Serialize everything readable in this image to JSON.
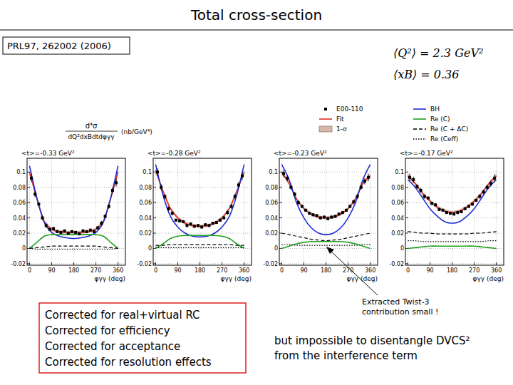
{
  "slide": {
    "title": "Total cross-section",
    "reference": "PRL97, 262002 (2006)",
    "kinematics": [
      "⟨Q²⟩ = 2.3 GeV²",
      "⟨xB⟩ = 0.36"
    ],
    "corrections": [
      "Corrected for real+virtual RC",
      "Corrected for efficiency",
      "Corrected for acceptance",
      "Corrected for resolution effects"
    ],
    "annotations": [
      "Extracted Twist-3",
      "contribution small !"
    ],
    "conclusion": [
      "but impossible to disentangle DVCS²",
      "from the interference term"
    ]
  },
  "chart_data": [
    {
      "type": "scatter",
      "title": "<t>=-0.33 GeV²",
      "x_label": "φγγ (deg)",
      "y_label": {
        "numerator": "d⁴σ",
        "denominator": "dQ²dxBdtdφγγ",
        "unit": "(nb/GeV⁴)"
      },
      "legend": "top-right",
      "grid": true,
      "xlim": [
        -10,
        390
      ],
      "xticks": [
        0,
        90,
        180,
        270,
        360
      ],
      "ylim": [
        -0.022,
        0.118
      ],
      "yticks": [
        -0.02,
        0,
        0.02,
        0.04,
        0.06,
        0.08,
        0.1
      ],
      "x": [
        0,
        30,
        60,
        90,
        120,
        150,
        180,
        210,
        240,
        270,
        300,
        330,
        360
      ],
      "series": [
        {
          "name": "E00-110",
          "type": "scatter",
          "marker": "square",
          "color": "#000000",
          "x": [
            7.5,
            22.5,
            37.5,
            52.5,
            67.5,
            82.5,
            97.5,
            112.5,
            127.5,
            142.5,
            157.5,
            172.5,
            187.5,
            202.5,
            217.5,
            232.5,
            247.5,
            262.5,
            277.5,
            292.5,
            307.5,
            322.5,
            337.5,
            352.5
          ],
          "values": [
            0.092,
            0.071,
            0.058,
            0.04,
            0.03,
            0.025,
            0.026,
            0.022,
            0.021,
            0.023,
            0.02,
            0.022,
            0.021,
            0.019,
            0.023,
            0.022,
            0.024,
            0.022,
            0.027,
            0.033,
            0.042,
            0.055,
            0.076,
            0.086
          ],
          "errors": [
            0.005,
            0.004,
            0.003,
            0.003,
            0.003,
            0.002,
            0.002,
            0.002,
            0.002,
            0.002,
            0.002,
            0.002,
            0.002,
            0.002,
            0.002,
            0.002,
            0.002,
            0.002,
            0.002,
            0.003,
            0.003,
            0.003,
            0.004,
            0.005
          ]
        },
        {
          "name": "Fit",
          "type": "line",
          "line_style": "solid",
          "color": "#e0302a",
          "values": [
            0.1,
            0.065,
            0.035,
            0.025,
            0.022,
            0.021,
            0.021,
            0.021,
            0.022,
            0.025,
            0.035,
            0.065,
            0.1
          ]
        },
        {
          "name": "1-σ",
          "type": "area",
          "color": "#c49a8a",
          "high": [
            0.103,
            0.067,
            0.037,
            0.027,
            0.024,
            0.023,
            0.023,
            0.023,
            0.024,
            0.027,
            0.037,
            0.067,
            0.103
          ],
          "low": [
            0.097,
            0.063,
            0.033,
            0.023,
            0.02,
            0.019,
            0.019,
            0.019,
            0.02,
            0.023,
            0.033,
            0.063,
            0.097
          ]
        },
        {
          "name": "BH",
          "type": "line",
          "line_style": "solid",
          "color": "#1f2fd0",
          "values": [
            0.108,
            0.066,
            0.034,
            0.021,
            0.016,
            0.014,
            0.013,
            0.014,
            0.016,
            0.021,
            0.034,
            0.066,
            0.108
          ]
        },
        {
          "name": "Re (C)",
          "type": "line",
          "line_style": "solid",
          "color": "#1fa01f",
          "values": [
            0,
            0.008,
            0.016,
            0.018,
            0.018,
            0.018,
            0.018,
            0.018,
            0.018,
            0.018,
            0.016,
            0.008,
            0
          ]
        },
        {
          "name": "Re (C + ΔC)",
          "type": "line",
          "line_style": "dashed",
          "color": "#000000",
          "values": [
            0,
            0.001,
            0.002,
            0.003,
            0.003,
            0.003,
            0.003,
            0.003,
            0.003,
            0.003,
            0.002,
            0.001,
            0
          ]
        },
        {
          "name": "Re (Ceff)",
          "type": "line",
          "line_style": "dotted",
          "color": "#000000",
          "values": [
            0,
            -0.001,
            -0.001,
            -0.001,
            -0.001,
            -0.001,
            -0.001,
            -0.001,
            -0.001,
            -0.001,
            -0.001,
            -0.001,
            0
          ]
        }
      ]
    },
    {
      "type": "scatter",
      "title": "<t>=-0.28 GeV²",
      "x_label": "φγγ (deg)",
      "grid": true,
      "xlim": [
        -10,
        390
      ],
      "xticks": [
        0,
        90,
        180,
        270,
        360
      ],
      "ylim": [
        -0.022,
        0.118
      ],
      "yticks": [
        -0.02,
        0,
        0.02,
        0.04,
        0.06,
        0.08,
        0.1
      ],
      "x": [
        0,
        30,
        60,
        90,
        120,
        150,
        180,
        210,
        240,
        270,
        300,
        330,
        360
      ],
      "series": [
        {
          "type": "scatter",
          "marker": "square",
          "color": "#000000",
          "x": [
            7.5,
            22.5,
            37.5,
            52.5,
            67.5,
            82.5,
            97.5,
            112.5,
            127.5,
            142.5,
            157.5,
            172.5,
            187.5,
            202.5,
            217.5,
            232.5,
            247.5,
            262.5,
            277.5,
            292.5,
            307.5,
            322.5,
            337.5,
            352.5
          ],
          "values": [
            0.1,
            0.08,
            0.068,
            0.052,
            0.046,
            0.037,
            0.036,
            0.035,
            0.03,
            0.032,
            0.029,
            0.03,
            0.028,
            0.031,
            0.03,
            0.033,
            0.034,
            0.037,
            0.04,
            0.047,
            0.055,
            0.068,
            0.083,
            0.095
          ],
          "errors": [
            0.005,
            0.004,
            0.003,
            0.003,
            0.003,
            0.002,
            0.002,
            0.002,
            0.002,
            0.002,
            0.002,
            0.002,
            0.002,
            0.002,
            0.002,
            0.002,
            0.002,
            0.002,
            0.002,
            0.003,
            0.003,
            0.003,
            0.004,
            0.005
          ]
        },
        {
          "type": "line",
          "line_style": "solid",
          "color": "#e0302a",
          "values": [
            0.102,
            0.075,
            0.052,
            0.04,
            0.033,
            0.03,
            0.029,
            0.03,
            0.033,
            0.04,
            0.052,
            0.075,
            0.1
          ]
        },
        {
          "type": "area",
          "color": "#c49a8a",
          "high": [
            0.105,
            0.077,
            0.054,
            0.042,
            0.035,
            0.032,
            0.031,
            0.032,
            0.035,
            0.042,
            0.054,
            0.077,
            0.103
          ],
          "low": [
            0.099,
            0.073,
            0.05,
            0.038,
            0.031,
            0.028,
            0.027,
            0.028,
            0.031,
            0.038,
            0.05,
            0.073,
            0.097
          ]
        },
        {
          "type": "line",
          "line_style": "solid",
          "color": "#1f2fd0",
          "values": [
            0.11,
            0.07,
            0.042,
            0.028,
            0.02,
            0.016,
            0.015,
            0.016,
            0.02,
            0.028,
            0.042,
            0.07,
            0.11
          ]
        },
        {
          "type": "line",
          "line_style": "solid",
          "color": "#1fa01f",
          "values": [
            0,
            0.006,
            0.013,
            0.016,
            0.017,
            0.017,
            0.017,
            0.017,
            0.017,
            0.016,
            0.013,
            0.006,
            0
          ]
        },
        {
          "type": "line",
          "line_style": "dashed",
          "color": "#000000",
          "values": [
            0.004,
            0.004,
            0.005,
            0.005,
            0.005,
            0.005,
            0.005,
            0.005,
            0.005,
            0.005,
            0.005,
            0.004,
            0.004
          ]
        },
        {
          "type": "line",
          "line_style": "dotted",
          "color": "#000000",
          "values": [
            0.001,
            0.001,
            0.001,
            0.001,
            0.001,
            0.001,
            0.001,
            0.001,
            0.001,
            0.001,
            0.001,
            0.001,
            0.001
          ]
        }
      ]
    },
    {
      "type": "scatter",
      "title": "<t>=-0.23 GeV²",
      "x_label": "φγγ (deg)",
      "grid": true,
      "xlim": [
        -10,
        390
      ],
      "xticks": [
        0,
        90,
        180,
        270,
        360
      ],
      "ylim": [
        -0.022,
        0.118
      ],
      "yticks": [
        -0.02,
        0,
        0.02,
        0.04,
        0.06,
        0.08,
        0.1
      ],
      "x": [
        0,
        30,
        60,
        90,
        120,
        150,
        180,
        210,
        240,
        270,
        300,
        330,
        360
      ],
      "series": [
        {
          "type": "scatter",
          "marker": "square",
          "color": "#000000",
          "x": [
            7.5,
            22.5,
            37.5,
            52.5,
            67.5,
            82.5,
            97.5,
            112.5,
            127.5,
            142.5,
            157.5,
            172.5,
            187.5,
            202.5,
            217.5,
            232.5,
            247.5,
            262.5,
            277.5,
            292.5,
            307.5,
            322.5,
            337.5,
            352.5
          ],
          "values": [
            0.098,
            0.092,
            0.08,
            0.071,
            0.06,
            0.055,
            0.05,
            0.046,
            0.044,
            0.043,
            0.04,
            0.041,
            0.039,
            0.041,
            0.042,
            0.045,
            0.047,
            0.05,
            0.055,
            0.061,
            0.068,
            0.08,
            0.088,
            0.093
          ],
          "errors": [
            0.005,
            0.004,
            0.003,
            0.003,
            0.003,
            0.002,
            0.002,
            0.002,
            0.002,
            0.002,
            0.002,
            0.002,
            0.002,
            0.002,
            0.002,
            0.002,
            0.002,
            0.002,
            0.002,
            0.003,
            0.003,
            0.003,
            0.004,
            0.005
          ]
        },
        {
          "type": "line",
          "line_style": "solid",
          "color": "#e0302a",
          "values": [
            0.1,
            0.085,
            0.065,
            0.052,
            0.045,
            0.041,
            0.04,
            0.041,
            0.045,
            0.052,
            0.065,
            0.085,
            0.095
          ]
        },
        {
          "type": "area",
          "color": "#c49a8a",
          "high": [
            0.103,
            0.087,
            0.067,
            0.054,
            0.047,
            0.043,
            0.042,
            0.043,
            0.047,
            0.054,
            0.067,
            0.087,
            0.098
          ],
          "low": [
            0.097,
            0.083,
            0.063,
            0.05,
            0.043,
            0.039,
            0.038,
            0.039,
            0.043,
            0.05,
            0.063,
            0.083,
            0.092
          ]
        },
        {
          "type": "line",
          "line_style": "solid",
          "color": "#1f2fd0",
          "values": [
            0.11,
            0.09,
            0.06,
            0.04,
            0.027,
            0.02,
            0.018,
            0.02,
            0.027,
            0.04,
            0.06,
            0.09,
            0.11
          ]
        },
        {
          "type": "line",
          "line_style": "solid",
          "color": "#1fa01f",
          "values": [
            0,
            0.003,
            0.006,
            0.008,
            0.009,
            0.009,
            0.009,
            0.009,
            0.009,
            0.008,
            0.006,
            0.003,
            0
          ]
        },
        {
          "type": "line",
          "line_style": "dashed",
          "color": "#000000",
          "values": [
            0.02,
            0.018,
            0.016,
            0.014,
            0.012,
            0.011,
            0.01,
            0.011,
            0.012,
            0.014,
            0.016,
            0.018,
            0.02
          ]
        },
        {
          "type": "line",
          "line_style": "dotted",
          "color": "#000000",
          "values": [
            0.005,
            0.005,
            0.004,
            0.004,
            0.004,
            0.004,
            0.004,
            0.004,
            0.004,
            0.004,
            0.004,
            0.005,
            0.005
          ]
        }
      ]
    },
    {
      "type": "scatter",
      "title": "<t>=-0.17 GeV²",
      "x_label": "φγγ (deg)",
      "grid": true,
      "xlim": [
        -10,
        390
      ],
      "xticks": [
        0,
        90,
        180,
        270,
        360
      ],
      "ylim": [
        -0.022,
        0.118
      ],
      "yticks": [
        -0.02,
        0,
        0.02,
        0.04,
        0.06,
        0.08,
        0.1
      ],
      "x": [
        0,
        30,
        60,
        90,
        120,
        150,
        180,
        210,
        240,
        270,
        300,
        330,
        360
      ],
      "series": [
        {
          "type": "scatter",
          "marker": "square",
          "color": "#000000",
          "x": [
            7.5,
            22.5,
            37.5,
            52.5,
            67.5,
            82.5,
            97.5,
            112.5,
            127.5,
            142.5,
            157.5,
            172.5,
            187.5,
            202.5,
            217.5,
            232.5,
            247.5,
            262.5,
            277.5,
            292.5,
            307.5,
            322.5,
            337.5,
            352.5
          ],
          "values": [
            0.093,
            0.09,
            0.081,
            0.076,
            0.068,
            0.066,
            0.059,
            0.057,
            0.051,
            0.05,
            0.047,
            0.046,
            0.045,
            0.047,
            0.048,
            0.052,
            0.055,
            0.058,
            0.063,
            0.068,
            0.074,
            0.08,
            0.085,
            0.092
          ],
          "errors": [
            0.005,
            0.004,
            0.003,
            0.003,
            0.003,
            0.002,
            0.002,
            0.002,
            0.002,
            0.002,
            0.002,
            0.002,
            0.002,
            0.002,
            0.002,
            0.002,
            0.002,
            0.002,
            0.002,
            0.003,
            0.003,
            0.003,
            0.004,
            0.005
          ]
        },
        {
          "type": "line",
          "line_style": "solid",
          "color": "#e0302a",
          "values": [
            0.095,
            0.085,
            0.072,
            0.062,
            0.054,
            0.049,
            0.047,
            0.049,
            0.054,
            0.062,
            0.072,
            0.085,
            0.095
          ]
        },
        {
          "type": "area",
          "color": "#c49a8a",
          "high": [
            0.098,
            0.087,
            0.074,
            0.064,
            0.056,
            0.051,
            0.049,
            0.051,
            0.056,
            0.064,
            0.074,
            0.087,
            0.098
          ],
          "low": [
            0.092,
            0.083,
            0.07,
            0.06,
            0.052,
            0.047,
            0.045,
            0.047,
            0.052,
            0.06,
            0.07,
            0.083,
            0.092
          ]
        },
        {
          "type": "line",
          "line_style": "solid",
          "color": "#1f2fd0",
          "values": [
            0.09,
            0.08,
            0.066,
            0.052,
            0.042,
            0.035,
            0.033,
            0.035,
            0.042,
            0.052,
            0.066,
            0.08,
            0.09
          ]
        },
        {
          "type": "line",
          "line_style": "solid",
          "color": "#1fa01f",
          "values": [
            0,
            0.001,
            0.002,
            0.003,
            0.003,
            0.003,
            0.003,
            0.003,
            0.003,
            0.003,
            0.002,
            0.001,
            0
          ]
        },
        {
          "type": "line",
          "line_style": "dashed",
          "color": "#000000",
          "values": [
            0.022,
            0.021,
            0.02,
            0.02,
            0.019,
            0.019,
            0.019,
            0.019,
            0.019,
            0.02,
            0.02,
            0.021,
            0.022
          ]
        },
        {
          "type": "line",
          "line_style": "dotted",
          "color": "#000000",
          "values": [
            0.01,
            0.01,
            0.009,
            0.009,
            0.009,
            0.009,
            0.009,
            0.009,
            0.009,
            0.009,
            0.009,
            0.01,
            0.01
          ]
        }
      ]
    }
  ]
}
